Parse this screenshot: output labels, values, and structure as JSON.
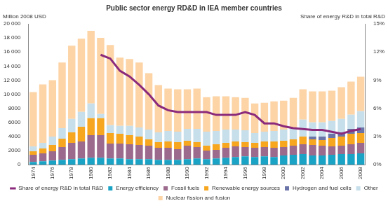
{
  "chart_data": {
    "type": "bar",
    "title": "Public sector energy RD&D in IEA member countries",
    "y_label": "Million 2008 USD",
    "y2_label": "Share of energy R&D in total R&D",
    "categories": [
      "1974",
      null,
      "1976",
      null,
      "1978",
      null,
      "1980",
      null,
      "1982",
      null,
      "1984",
      null,
      "1986",
      null,
      "1988",
      null,
      "1990",
      null,
      "1992",
      null,
      "1994",
      null,
      "1996",
      null,
      "1998",
      null,
      "2000",
      null,
      "2002",
      null,
      "2004",
      null,
      "2006",
      null,
      "2008"
    ],
    "stacked": true,
    "grid": false,
    "legend": "bottom",
    "ylim": [
      0,
      20000
    ],
    "yticks": [
      0,
      2000,
      4000,
      6000,
      8000,
      {
        "value": 10000,
        "label": "10 000"
      },
      {
        "value": 12000,
        "label": "12 000"
      },
      {
        "value": 14000,
        "label": "14 000"
      },
      {
        "value": 16000,
        "label": "16 000"
      },
      {
        "value": 18000,
        "label": "18 000"
      },
      {
        "value": 20000,
        "label": "20 000"
      }
    ],
    "y2lim": [
      0,
      15
    ],
    "y2ticks": [
      {
        "value": 0,
        "label": "0%"
      },
      {
        "value": 3,
        "label": "3%"
      },
      {
        "value": 6,
        "label": "6%"
      },
      {
        "value": 9,
        "label": "9%"
      },
      {
        "value": 12,
        "label": "12%"
      },
      {
        "value": 15,
        "label": "15%"
      }
    ],
    "series": [
      {
        "name": "Energy efficiency",
        "color": "#1ba3c6",
        "values": [
          400,
          500,
          600,
          700,
          800,
          900,
          1000,
          1000,
          900,
          900,
          800,
          800,
          800,
          700,
          700,
          700,
          800,
          900,
          800,
          900,
          1000,
          1100,
          1200,
          1100,
          1200,
          1100,
          1300,
          1400,
          1500,
          1300,
          1300,
          1400,
          1500,
          1500,
          1600
        ]
      },
      {
        "name": "Fossil fuels",
        "color": "#9c6a8c",
        "values": [
          1000,
          1100,
          1300,
          1800,
          2300,
          2400,
          3200,
          3200,
          2100,
          2100,
          2100,
          2000,
          1900,
          1700,
          1700,
          1500,
          1900,
          1600,
          1200,
          1200,
          1400,
          1500,
          1300,
          1300,
          1300,
          1300,
          1200,
          1300,
          1400,
          1500,
          1400,
          1200,
          1200,
          1400,
          1500
        ]
      },
      {
        "name": "Renewable energy sources",
        "color": "#f6a71f",
        "values": [
          500,
          700,
          900,
          1200,
          1500,
          2100,
          2400,
          2400,
          1500,
          1400,
          1300,
          1200,
          900,
          800,
          900,
          1000,
          700,
          700,
          700,
          800,
          700,
          700,
          700,
          700,
          800,
          900,
          900,
          900,
          1100,
          800,
          800,
          1200,
          1300,
          1500,
          1400
        ]
      },
      {
        "name": "Hydrogen and fuel cells",
        "color": "#6b74a8",
        "values": [
          0,
          0,
          0,
          0,
          0,
          0,
          0,
          0,
          0,
          0,
          0,
          0,
          0,
          0,
          0,
          0,
          0,
          0,
          0,
          0,
          0,
          0,
          0,
          0,
          0,
          0,
          0,
          0,
          0,
          400,
          500,
          600,
          600,
          700,
          800
        ]
      },
      {
        "name": "Other",
        "color": "#c7dfea",
        "values": [
          700,
          800,
          1200,
          1500,
          1900,
          2100,
          2100,
          600,
          1100,
          1100,
          1300,
          1300,
          1400,
          1400,
          1500,
          1500,
          1700,
          1900,
          2000,
          1900,
          1900,
          1700,
          1700,
          1400,
          1400,
          1500,
          1600,
          1700,
          2400,
          2000,
          2000,
          1800,
          1900,
          2000,
          2300
        ]
      },
      {
        "name": "Nuclear fission and fusion",
        "color": "#fcd4a6",
        "values": [
          7700,
          8300,
          8000,
          9300,
          10400,
          10400,
          10300,
          10800,
          11400,
          9700,
          9500,
          9200,
          8000,
          6700,
          6000,
          6000,
          5600,
          5700,
          4900,
          4900,
          4700,
          4600,
          4600,
          4200,
          4100,
          4200,
          4100,
          4200,
          4300,
          4400,
          4400,
          4300,
          4500,
          4700,
          4900
        ]
      },
      {
        "name": "Share of energy R&D in total R&D",
        "color": "#8b2a7c",
        "type": "line",
        "axis": "y2",
        "values": [
          null,
          null,
          null,
          null,
          null,
          null,
          null,
          11.7,
          11.3,
          10.0,
          9.4,
          8.5,
          7.5,
          6.3,
          5.8,
          5.6,
          5.6,
          5.6,
          5.6,
          5.3,
          5.3,
          5.3,
          5.6,
          5.3,
          4.4,
          4.4,
          4.1,
          3.9,
          3.8,
          3.7,
          3.7,
          3.5,
          3.3,
          3.6,
          3.8
        ]
      }
    ]
  }
}
